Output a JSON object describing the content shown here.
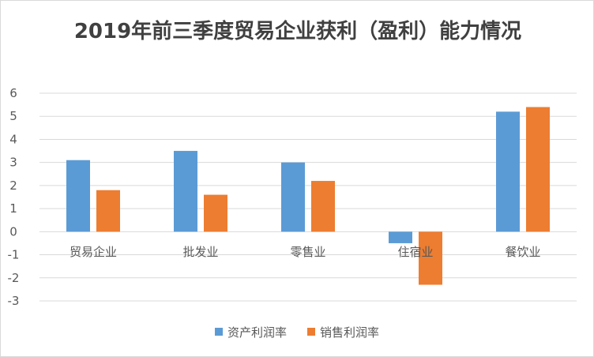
{
  "chart_data": {
    "type": "bar",
    "title": "2019年前三季度贸易企业获利（盈利）能力情况",
    "categories": [
      "贸易企业",
      "批发业",
      "零售业",
      "住宿业",
      "餐饮业"
    ],
    "series": [
      {
        "name": "资产利润率",
        "values": [
          3.1,
          3.5,
          3.0,
          -0.5,
          5.2
        ],
        "color": "#5b9bd5"
      },
      {
        "name": "销售利润率",
        "values": [
          1.8,
          1.6,
          2.2,
          -2.3,
          5.4
        ],
        "color": "#ed7d31"
      }
    ],
    "ylim": [
      -3,
      6
    ],
    "yticks": [
      6,
      5,
      4,
      3,
      2,
      1,
      0,
      -1,
      -2,
      -3
    ],
    "grid": true,
    "legend_position": "bottom"
  }
}
